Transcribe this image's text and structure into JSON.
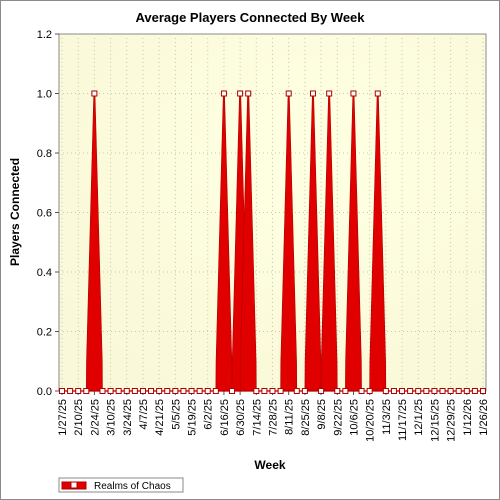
{
  "chart_data": {
    "type": "area",
    "title": "Average Players Connected By Week",
    "xlabel": "Week",
    "ylabel": "Players Connected",
    "ylim": [
      0,
      1.2
    ],
    "yticks": [
      "0.0",
      "0.2",
      "0.4",
      "0.6",
      "0.8",
      "1.0",
      "1.2"
    ],
    "grid": true,
    "legend_position": "bottom-left",
    "x_tick_labels": [
      "1/27/25",
      "2/10/25",
      "2/24/25",
      "3/10/25",
      "3/24/25",
      "4/7/25",
      "4/21/25",
      "5/5/25",
      "5/19/25",
      "6/2/25",
      "6/16/25",
      "6/30/25",
      "7/14/25",
      "7/28/25",
      "8/11/25",
      "8/25/25",
      "9/8/25",
      "9/22/25",
      "10/6/25",
      "10/20/25",
      "11/3/25",
      "11/17/25",
      "12/1/25",
      "12/15/25",
      "12/29/25",
      "1/12/26",
      "1/26/26"
    ],
    "x": [
      "1/27/25",
      "2/3/25",
      "2/10/25",
      "2/17/25",
      "2/24/25",
      "3/3/25",
      "3/10/25",
      "3/17/25",
      "3/24/25",
      "3/31/25",
      "4/7/25",
      "4/14/25",
      "4/21/25",
      "4/28/25",
      "5/5/25",
      "5/12/25",
      "5/19/25",
      "5/26/25",
      "6/2/25",
      "6/9/25",
      "6/16/25",
      "6/23/25",
      "6/30/25",
      "7/7/25",
      "7/14/25",
      "7/21/25",
      "7/28/25",
      "8/4/25",
      "8/11/25",
      "8/18/25",
      "8/25/25",
      "9/1/25",
      "9/8/25",
      "9/15/25",
      "9/22/25",
      "9/29/25",
      "10/6/25",
      "10/13/25",
      "10/20/25",
      "10/27/25",
      "11/3/25",
      "11/10/25",
      "11/17/25",
      "11/24/25",
      "12/1/25",
      "12/8/25",
      "12/15/25",
      "12/22/25",
      "12/29/25",
      "1/5/26",
      "1/12/26",
      "1/19/26",
      "1/26/26"
    ],
    "series": [
      {
        "name": "Realms of Chaos",
        "color": "#e00000",
        "values": [
          0,
          0,
          0,
          0,
          1,
          0,
          0,
          0,
          0,
          0,
          0,
          0,
          0,
          0,
          0,
          0,
          0,
          0,
          0,
          0,
          1,
          0,
          1,
          1,
          0,
          0,
          0,
          0,
          1,
          0,
          0,
          1,
          0,
          1,
          0,
          0,
          1,
          0,
          0,
          1,
          0,
          0,
          0,
          0,
          0,
          0,
          0,
          0,
          0,
          0,
          0,
          0,
          0
        ]
      }
    ]
  },
  "colors": {
    "series": "#e00000",
    "series_edge": "#b00000",
    "plot_bg": "#fdfde8"
  }
}
